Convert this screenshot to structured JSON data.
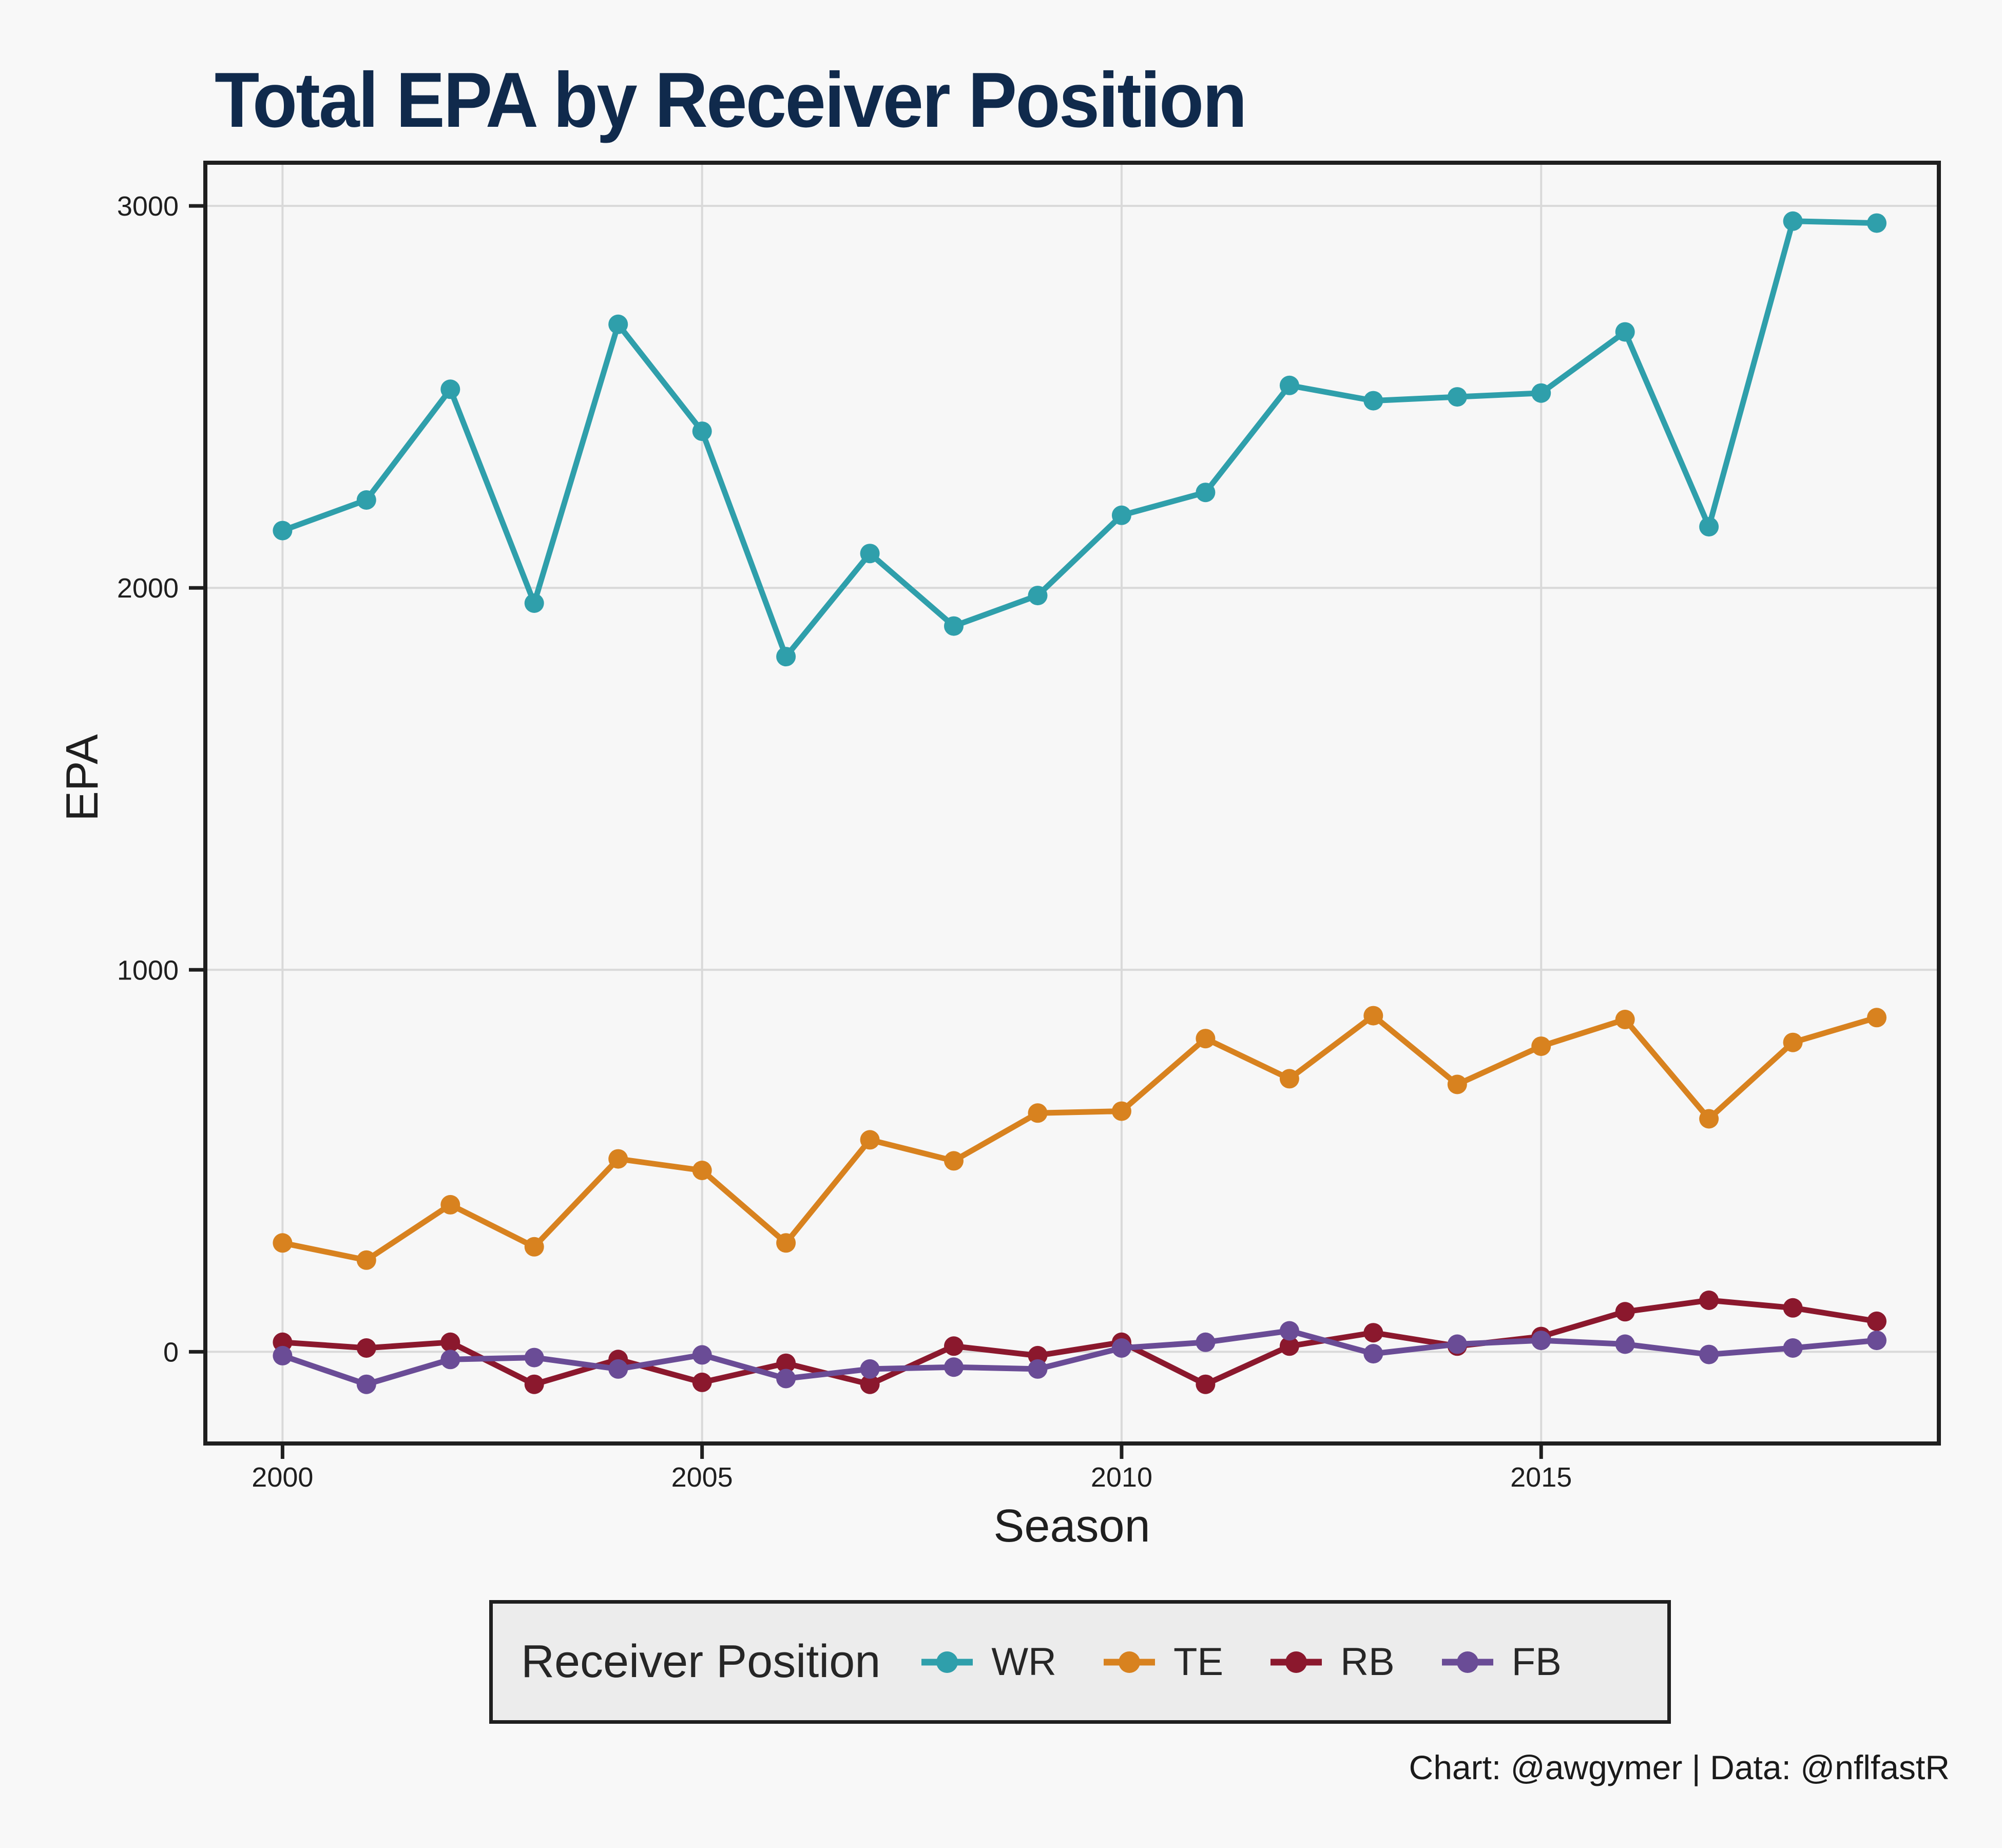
{
  "page": {
    "credit": "Chart: @awgymer | Data: @nflfastR"
  },
  "style": {
    "background": "#F8F8F8",
    "panel_background": "#F7F7F7",
    "grid_color": "#D9D9D9",
    "border_color": "#1F1F1F",
    "tick_color": "#1F1F1F",
    "title_color": "#102A4C",
    "legend_background": "#ECECEC"
  },
  "chart_data": {
    "type": "line",
    "title": "Total EPA by Receiver Position",
    "xlabel": "Season",
    "ylabel": "EPA",
    "legend_title": "Receiver Position",
    "legend_position": "bottom",
    "grid": true,
    "xlim": [
      1999.08,
      2019.74
    ],
    "ylim": [
      -240,
      3113
    ],
    "x_ticks": {
      "values": [
        2000,
        2005,
        2010,
        2015
      ],
      "labels": [
        "2000",
        "2005",
        "2010",
        "2015"
      ]
    },
    "y_ticks": {
      "values": [
        0,
        1000,
        2000,
        3000
      ],
      "labels": [
        "0",
        "1000",
        "2000",
        "3000"
      ]
    },
    "x": [
      2000,
      2001,
      2002,
      2003,
      2004,
      2005,
      2006,
      2007,
      2008,
      2009,
      2010,
      2011,
      2012,
      2013,
      2014,
      2015,
      2016,
      2017,
      2018,
      2019
    ],
    "series": [
      {
        "name": "WR",
        "color": "#2F9FAB",
        "values": [
          2150,
          2230,
          2520,
          1960,
          2690,
          2410,
          1820,
          2090,
          1900,
          1980,
          2190,
          2250,
          2530,
          2490,
          2500,
          2510,
          2670,
          2160,
          2960,
          2955
        ]
      },
      {
        "name": "TE",
        "color": "#D8821F",
        "values": [
          285,
          240,
          385,
          275,
          505,
          475,
          285,
          555,
          500,
          625,
          630,
          820,
          715,
          880,
          700,
          800,
          870,
          610,
          810,
          875
        ]
      },
      {
        "name": "RB",
        "color": "#8B182D",
        "values": [
          25,
          10,
          25,
          -85,
          -20,
          -80,
          -30,
          -85,
          15,
          -10,
          25,
          -85,
          15,
          50,
          15,
          40,
          105,
          135,
          115,
          80
        ]
      },
      {
        "name": "FB",
        "color": "#6A4C96",
        "values": [
          -10,
          -85,
          -20,
          -15,
          -45,
          -8,
          -70,
          -45,
          -40,
          -45,
          10,
          25,
          55,
          -5,
          20,
          30,
          20,
          -7,
          10,
          30
        ]
      }
    ]
  }
}
